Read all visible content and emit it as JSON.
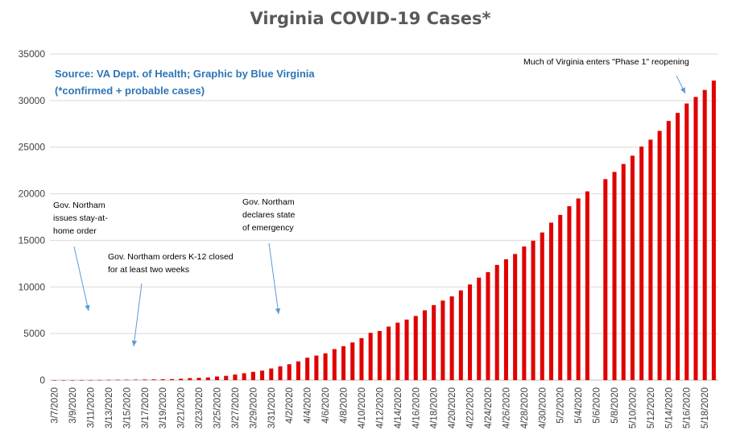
{
  "chart_data": {
    "type": "bar",
    "title": "Virginia COVID-19 Cases*",
    "xlabel": "",
    "ylabel": "",
    "ylim": [
      0,
      35000
    ],
    "yticks": [
      0,
      5000,
      10000,
      15000,
      20000,
      25000,
      30000,
      35000
    ],
    "grid": true,
    "legend": "none",
    "bar_color": "#e00000",
    "source_note": [
      "Source: VA Dept. of Health; Graphic by Blue Virginia",
      "(*confirmed + probable cases)"
    ],
    "categories": [
      "3/7/2020",
      "3/8/2020",
      "3/9/2020",
      "3/10/2020",
      "3/11/2020",
      "3/12/2020",
      "3/13/2020",
      "3/14/2020",
      "3/15/2020",
      "3/16/2020",
      "3/17/2020",
      "3/18/2020",
      "3/19/2020",
      "3/20/2020",
      "3/21/2020",
      "3/22/2020",
      "3/23/2020",
      "3/24/2020",
      "3/25/2020",
      "3/26/2020",
      "3/27/2020",
      "3/28/2020",
      "3/29/2020",
      "3/30/2020",
      "3/31/2020",
      "4/1/2020",
      "4/2/2020",
      "4/3/2020",
      "4/4/2020",
      "4/5/2020",
      "4/6/2020",
      "4/7/2020",
      "4/8/2020",
      "4/9/2020",
      "4/10/2020",
      "4/11/2020",
      "4/12/2020",
      "4/13/2020",
      "4/14/2020",
      "4/15/2020",
      "4/16/2020",
      "4/17/2020",
      "4/18/2020",
      "4/19/2020",
      "4/20/2020",
      "4/21/2020",
      "4/22/2020",
      "4/23/2020",
      "4/24/2020",
      "4/25/2020",
      "4/26/2020",
      "4/27/2020",
      "4/28/2020",
      "4/29/2020",
      "4/30/2020",
      "5/1/2020",
      "5/2/2020",
      "5/3/2020",
      "5/4/2020",
      "5/5/2020",
      "5/6/2020",
      "5/7/2020",
      "5/8/2020",
      "5/9/2020",
      "5/10/2020",
      "5/11/2020",
      "5/12/2020",
      "5/13/2020",
      "5/14/2020",
      "5/15/2020",
      "5/16/2020",
      "5/17/2020",
      "5/18/2020",
      "5/19/2020"
    ],
    "tick_labels": [
      "3/7/2020",
      "3/9/2020",
      "3/11/2020",
      "3/13/2020",
      "3/15/2020",
      "3/17/2020",
      "3/19/2020",
      "3/21/2020",
      "3/23/2020",
      "3/25/2020",
      "3/27/2020",
      "3/29/2020",
      "3/31/2020",
      "4/2/2020",
      "4/4/2020",
      "4/6/2020",
      "4/8/2020",
      "4/10/2020",
      "4/12/2020",
      "4/14/2020",
      "4/16/2020",
      "4/18/2020",
      "4/20/2020",
      "4/22/2020",
      "4/24/2020",
      "4/26/2020",
      "4/28/2020",
      "4/30/2020",
      "5/2/2020",
      "5/4/2020",
      "5/6/2020",
      "5/8/2020",
      "5/10/2020",
      "5/12/2020",
      "5/14/2020",
      "5/16/2020",
      "5/18/2020"
    ],
    "values": [
      2,
      2,
      3,
      5,
      9,
      17,
      30,
      41,
      45,
      51,
      67,
      77,
      99,
      114,
      152,
      219,
      254,
      290,
      391,
      460,
      604,
      739,
      890,
      1020,
      1250,
      1484,
      1706,
      2012,
      2407,
      2637,
      2878,
      3333,
      3645,
      4042,
      4509,
      5077,
      5274,
      5747,
      6171,
      6500,
      6889,
      7491,
      8053,
      8537,
      8990,
      9630,
      10266,
      10998,
      11594,
      12366,
      12970,
      13535,
      14339,
      14961,
      15846,
      16901,
      17731,
      18671,
      19492,
      20256,
      null,
      21570,
      22342,
      23196,
      24081,
      25070,
      25800,
      26746,
      27813,
      28672,
      29683,
      30388,
      31140,
      32145
    ],
    "annotations": [
      {
        "lines": [
          "Gov. Northam",
          "issues stay-at-",
          "home order"
        ]
      },
      {
        "lines": [
          "Gov. Northam orders K-12 closed",
          "for at least two weeks"
        ]
      },
      {
        "lines": [
          "Gov. Northam",
          "declares state",
          "of emergency"
        ]
      },
      {
        "lines": [
          "Much of Virginia enters \"Phase 1\" reopening"
        ]
      }
    ]
  }
}
